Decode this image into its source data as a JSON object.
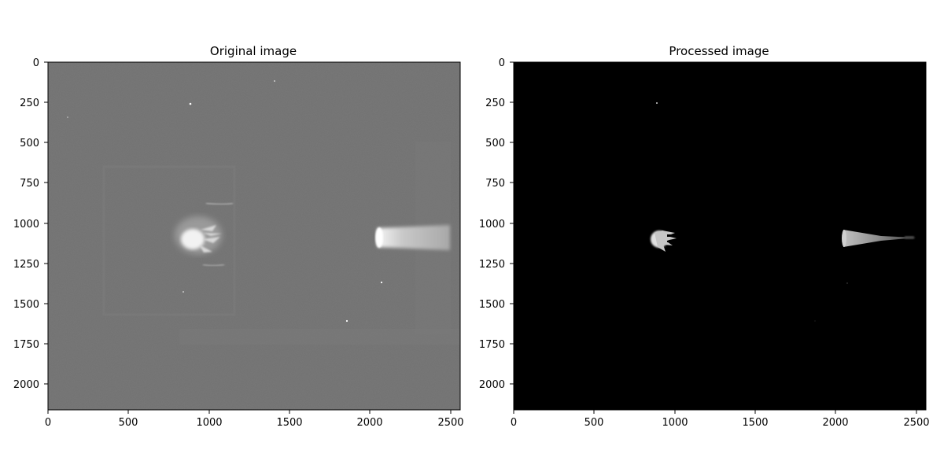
{
  "chart_data": [
    {
      "type": "heatmap",
      "title": "Original image",
      "colormap": "gray",
      "x_ticks": [
        0,
        500,
        1000,
        1500,
        2000,
        2500
      ],
      "y_ticks": [
        0,
        250,
        500,
        750,
        1000,
        1250,
        1500,
        1750,
        2000
      ],
      "xlim": [
        0,
        2560
      ],
      "ylim": [
        2160,
        0
      ],
      "background_color": "#727272",
      "features": [
        {
          "kind": "bright-blob",
          "x": 920,
          "y": 1100
        },
        {
          "kind": "bright-cone",
          "x": 2050,
          "y": 1100
        }
      ]
    },
    {
      "type": "heatmap",
      "title": "Processed image",
      "colormap": "gray",
      "x_ticks": [
        0,
        500,
        1000,
        1500,
        2000,
        2500
      ],
      "y_ticks": [
        0,
        250,
        500,
        750,
        1000,
        1250,
        1500,
        1750,
        2000
      ],
      "xlim": [
        0,
        2560
      ],
      "ylim": [
        2160,
        0
      ],
      "background_color": "#000000",
      "features": [
        {
          "kind": "bright-blob",
          "x": 920,
          "y": 1100
        },
        {
          "kind": "bright-cone",
          "x": 2050,
          "y": 1100
        }
      ]
    }
  ]
}
